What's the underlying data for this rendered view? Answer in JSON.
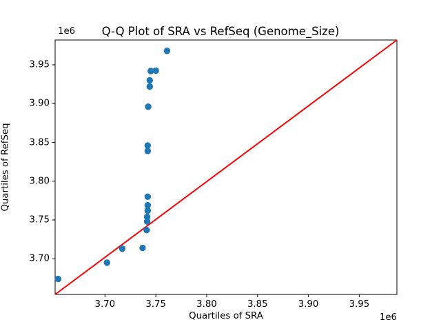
{
  "chart_data": {
    "type": "scatter",
    "title": "Q-Q Plot of SRA vs RefSeq (Genome_Size)",
    "xlabel": "Quartiles of SRA",
    "ylabel": "Quartiles of RefSeq",
    "x_offset_text": "1e6",
    "y_offset_text": "1e6",
    "unit_scale": 1000000,
    "xlim": [
      3651000,
      3987000
    ],
    "ylim": [
      3654000,
      3982000
    ],
    "grid": false,
    "legend": "none",
    "xticks": {
      "values": [
        3700000,
        3750000,
        3800000,
        3850000,
        3900000,
        3950000
      ],
      "labels": [
        "3.70",
        "3.75",
        "3.80",
        "3.85",
        "3.90",
        "3.95"
      ]
    },
    "yticks": {
      "values": [
        3700000,
        3750000,
        3800000,
        3850000,
        3900000,
        3950000
      ],
      "labels": [
        "3.70",
        "3.75",
        "3.80",
        "3.85",
        "3.90",
        "3.95"
      ]
    },
    "points": [
      [
        3654000,
        3674000
      ],
      [
        3702000,
        3695000
      ],
      [
        3717000,
        3713000
      ],
      [
        3737000,
        3714000
      ],
      [
        3741000,
        3737000
      ],
      [
        3741500,
        3748000
      ],
      [
        3741500,
        3754000
      ],
      [
        3742000,
        3762000
      ],
      [
        3742000,
        3769000
      ],
      [
        3742000,
        3780000
      ],
      [
        3742000,
        3839000
      ],
      [
        3742000,
        3846000
      ],
      [
        3742500,
        3896000
      ],
      [
        3744000,
        3922000
      ],
      [
        3744000,
        3930000
      ],
      [
        3745000,
        3942000
      ],
      [
        3750000,
        3942500
      ],
      [
        3761000,
        3968000
      ]
    ],
    "identity_line": {
      "from": [
        3651000,
        3654000
      ],
      "to": [
        3987000,
        3982000
      ],
      "color": "#ff0000",
      "width": 2
    },
    "point_color": "#1f77b4",
    "point_radius": 4.7,
    "spine_color": "#000000",
    "background": "#ffffff"
  }
}
